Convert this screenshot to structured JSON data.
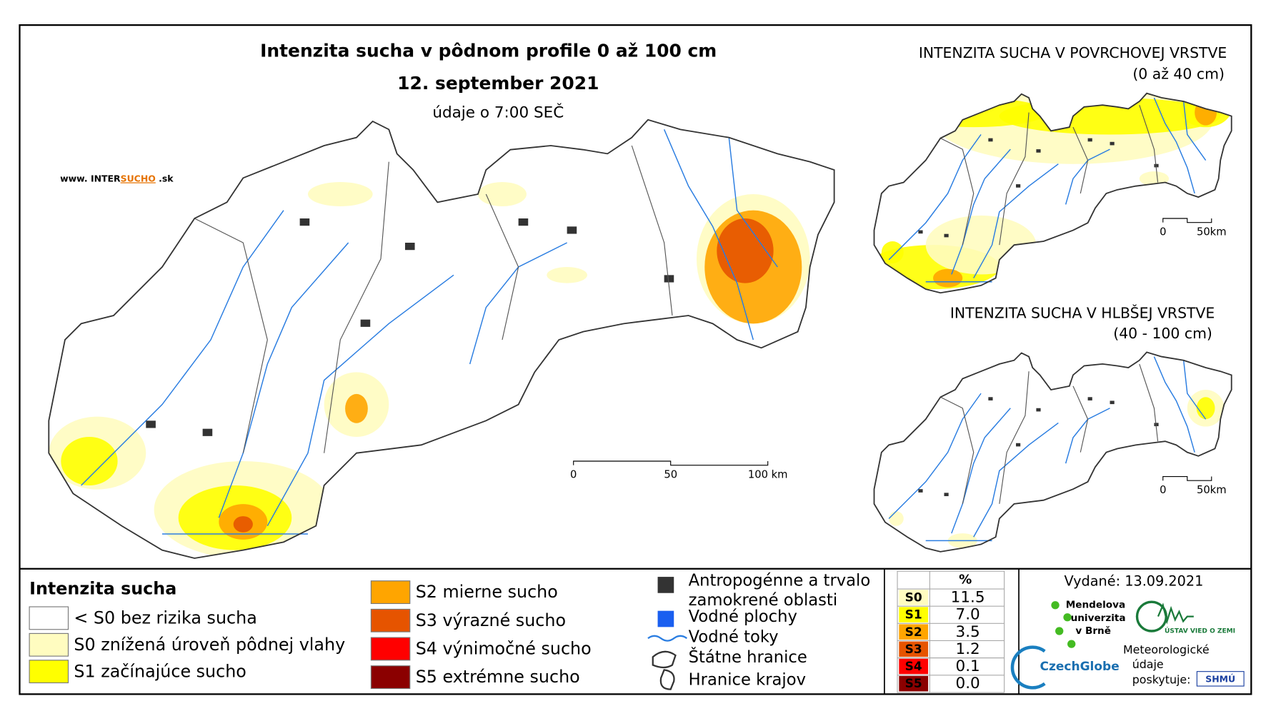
{
  "main_map": {
    "title": "Intenzita sucha v pôdnom profile 0 až 100 cm",
    "date": "12. september 2021",
    "time": "údaje o 7:00 SEČ",
    "website": [
      "www. INTER",
      "SUCHO",
      " .sk"
    ],
    "scale": [
      "0",
      "50",
      "100 km"
    ]
  },
  "inset_top": {
    "title": "INTENZITA SUCHA V POVRCHOVEJ VRSTVE",
    "subtitle": "(0 až 40 cm)",
    "scale": [
      "0",
      "50km"
    ]
  },
  "inset_bottom": {
    "title": "INTENZITA SUCHA V HLBŠEJ VRSTVE",
    "subtitle": "(40 - 100 cm)",
    "scale": [
      "0",
      "50km"
    ]
  },
  "legend": {
    "title": "Intenzita sucha",
    "items": [
      {
        "label": "< S0 bez rizika sucha",
        "color": "#ffffff"
      },
      {
        "label": "S0 znížená úroveň pôdnej vlahy",
        "color": "#fffcc0"
      },
      {
        "label": "S1 začínajúce sucho",
        "color": "#ffff00"
      },
      {
        "label": "S2 mierne sucho",
        "color": "#ffa500"
      },
      {
        "label": "S3 výrazné sucho",
        "color": "#e65400"
      },
      {
        "label": "S4 výnimočné sucho",
        "color": "#ff0000"
      },
      {
        "label": "S5 extrémne sucho",
        "color": "#8b0000"
      }
    ]
  },
  "symbols": [
    "Antropogénne a trvalo zamokrené oblasti",
    "Vodné plochy",
    "Vodné toky",
    "Štátne hranice",
    "Hranice krajov"
  ],
  "table": {
    "header": "%",
    "rows": [
      [
        "S0",
        "11.5"
      ],
      [
        "S1",
        "7.0"
      ],
      [
        "S2",
        "3.5"
      ],
      [
        "S3",
        "1.2"
      ],
      [
        "S4",
        "0.1"
      ],
      [
        "S5",
        "0.0"
      ]
    ]
  },
  "issued": "Vydané: 13.09.2021",
  "logos": {
    "mendel": [
      "Mendelova",
      "univerzita",
      "v Brně"
    ],
    "czechglobe": "CzechGlobe",
    "uvz": "ÚSTAV VIED O ZEMI",
    "meteo": [
      "Meteorologické",
      "údaje",
      "poskytuje:"
    ],
    "shmu": "SHMÚ"
  }
}
